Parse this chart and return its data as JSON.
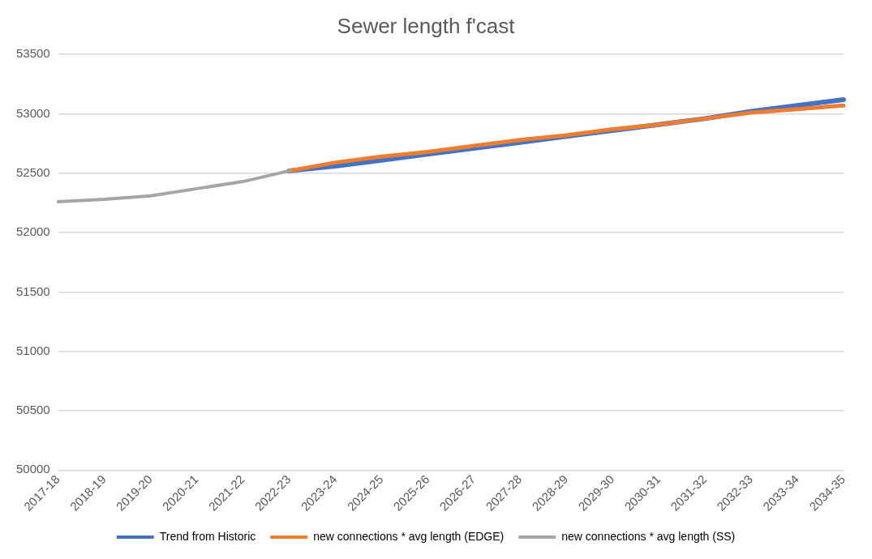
{
  "chart_data": {
    "type": "line",
    "title": "Sewer length f'cast",
    "categories": [
      "2017-18",
      "2018-19",
      "2019-20",
      "2020-21",
      "2021-22",
      "2022-23",
      "2023-24",
      "2024-25",
      "2025-26",
      "2026-27",
      "2027-28",
      "2028-29",
      "2029-30",
      "2030-31",
      "2031-32",
      "2032-33",
      "2033-34",
      "2034-35"
    ],
    "series": [
      {
        "name": "Trend from Historic",
        "color": "#4472c4",
        "values": [
          null,
          null,
          null,
          null,
          null,
          52520,
          52560,
          52610,
          52660,
          52710,
          52760,
          52810,
          52860,
          52910,
          52960,
          53020,
          53070,
          53120
        ]
      },
      {
        "name": "new connections * avg length (EDGE)",
        "color": "#ed7d31",
        "values": [
          null,
          null,
          null,
          null,
          null,
          52520,
          52590,
          52640,
          52680,
          52730,
          52780,
          52820,
          52870,
          52910,
          52960,
          53010,
          53040,
          53070
        ]
      },
      {
        "name": "new connections * avg length (SS)",
        "color": "#a5a5a5",
        "values": [
          52260,
          52280,
          52310,
          52370,
          52430,
          52520,
          null,
          null,
          null,
          null,
          null,
          null,
          null,
          null,
          null,
          null,
          null,
          null
        ]
      }
    ],
    "ylim": [
      50000,
      53500
    ],
    "yticks": [
      50000,
      50500,
      51000,
      51500,
      52000,
      52500,
      53000,
      53500
    ],
    "grid": "y",
    "legend": "bottom",
    "marker": "none",
    "line_style": "solid"
  }
}
